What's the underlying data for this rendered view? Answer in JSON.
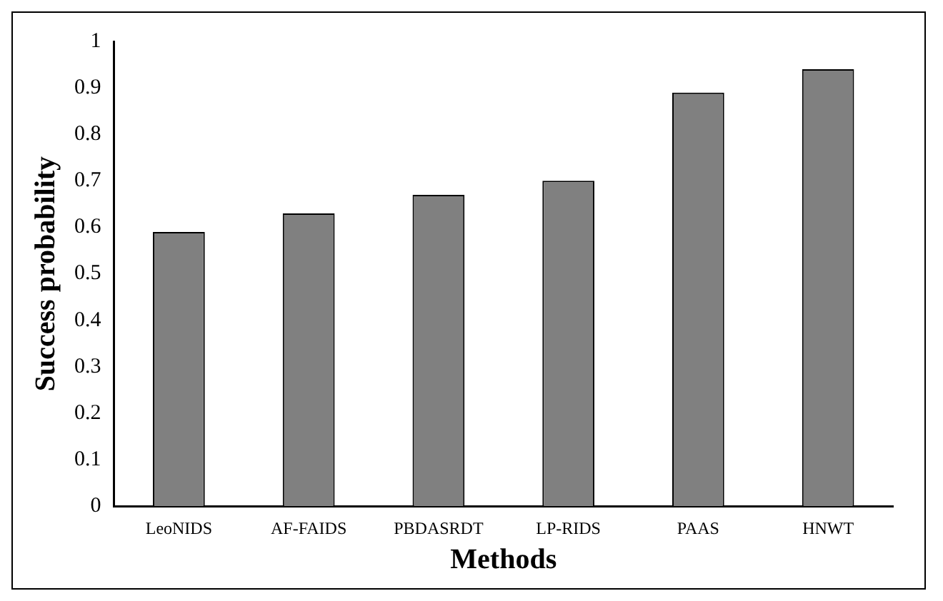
{
  "chart_data": {
    "type": "bar",
    "xlabel": "Methods",
    "ylabel": "Success probability",
    "categories": [
      "LeoNIDS",
      "AF-FAIDS",
      "PBDASRDT",
      "LP-RIDS",
      "PAAS",
      "HNWT"
    ],
    "values": [
      0.59,
      0.63,
      0.67,
      0.7,
      0.89,
      0.94
    ],
    "color": "#808080",
    "ylim": [
      0,
      1
    ],
    "yticks": [
      0,
      0.1,
      0.2,
      0.3,
      0.4,
      0.5,
      0.6,
      0.7,
      0.8,
      0.9,
      1
    ],
    "grid": false,
    "legend": false
  }
}
